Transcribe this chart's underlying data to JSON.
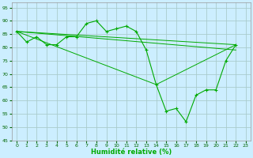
{
  "xlabel": "Humidité relative (%)",
  "bg_color": "#cceeff",
  "grid_color": "#aacccc",
  "line_color": "#00aa00",
  "xlim": [
    -0.5,
    23.5
  ],
  "ylim": [
    45,
    97
  ],
  "yticks": [
    45,
    50,
    55,
    60,
    65,
    70,
    75,
    80,
    85,
    90,
    95
  ],
  "xticks": [
    0,
    1,
    2,
    3,
    4,
    5,
    6,
    7,
    8,
    9,
    10,
    11,
    12,
    13,
    14,
    15,
    16,
    17,
    18,
    19,
    20,
    21,
    22,
    23
  ],
  "series1_x": [
    0,
    1,
    2,
    3,
    4,
    5,
    6,
    7,
    8,
    9,
    10,
    11,
    12,
    13,
    14,
    15,
    16,
    17,
    18,
    19,
    20,
    21,
    22
  ],
  "series1_y": [
    86,
    82,
    84,
    81,
    81,
    84,
    84,
    89,
    90,
    86,
    87,
    88,
    86,
    79,
    66,
    56,
    57,
    52,
    62,
    64,
    64,
    75,
    81
  ],
  "series2_x": [
    0,
    22
  ],
  "series2_y": [
    86,
    81
  ],
  "series3_x": [
    0,
    22
  ],
  "series3_y": [
    86,
    81
  ],
  "series4_x": [
    0,
    14,
    22
  ],
  "series4_y": [
    86,
    66,
    81
  ]
}
